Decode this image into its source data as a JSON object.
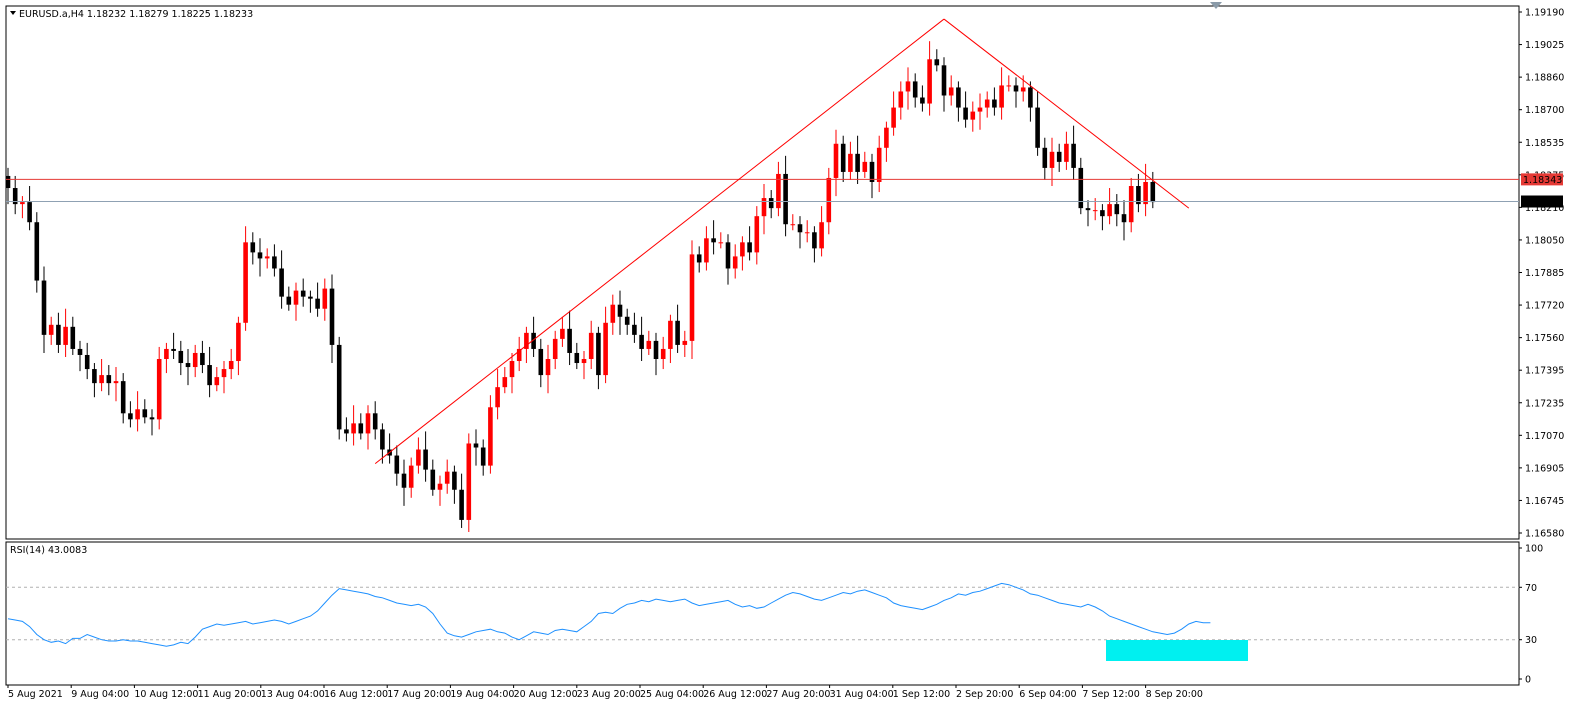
{
  "header": {
    "symbol_line": "EURUSD.a,H4  1.18232 1.18279 1.18225 1.18233",
    "menu_icon": "triangle-down-icon"
  },
  "rsi_panel": {
    "label": "RSI(14) 43.0083"
  },
  "price_tags": {
    "red_line_label": "1.18343",
    "current_price_label": "1.18233"
  },
  "colors": {
    "bull": "#ff0000",
    "bear": "#000000",
    "trendline": "#ff0000",
    "hline": "#e53935",
    "price_line": "#8fa1b3",
    "rsi_line": "#1e90ff",
    "rsi_box": "#00f0f0",
    "grid_dash": "#b0b0b0"
  },
  "chart_data": {
    "type": "candlestick",
    "symbol": "EURUSD.a",
    "timeframe": "H4",
    "ohlc_last": {
      "open": 1.18232,
      "high": 1.18279,
      "low": 1.18225,
      "close": 1.18233
    },
    "y_range": [
      1.1658,
      1.1919
    ],
    "y_ticks": [
      "1.19190",
      "1.19025",
      "1.18860",
      "1.18700",
      "1.18535",
      "1.18375",
      "1.18210",
      "1.18050",
      "1.17885",
      "1.17720",
      "1.17560",
      "1.17395",
      "1.17235",
      "1.17070",
      "1.16905",
      "1.16745",
      "1.16580"
    ],
    "x_labels": [
      "5 Aug 2021",
      "9 Aug 04:00",
      "10 Aug 12:00",
      "11 Aug 20:00",
      "13 Aug 04:00",
      "16 Aug 12:00",
      "17 Aug 20:00",
      "19 Aug 04:00",
      "20 Aug 12:00",
      "23 Aug 20:00",
      "25 Aug 04:00",
      "26 Aug 12:00",
      "27 Aug 20:00",
      "31 Aug 04:00",
      "1 Sep 12:00",
      "2 Sep 20:00",
      "6 Sep 04:00",
      "7 Sep 12:00",
      "8 Sep 20:00"
    ],
    "closes": [
      1.183,
      1.1822,
      1.1823,
      1.1813,
      1.1784,
      1.1757,
      1.1762,
      1.1752,
      1.1761,
      1.175,
      1.1747,
      1.174,
      1.1733,
      1.1737,
      1.1733,
      1.1734,
      1.1718,
      1.1715,
      1.172,
      1.1716,
      1.1715,
      1.1745,
      1.175,
      1.1749,
      1.1743,
      1.1741,
      1.1748,
      1.1742,
      1.1732,
      1.1736,
      1.174,
      1.1744,
      1.1763,
      1.1803,
      1.1798,
      1.1795,
      1.1796,
      1.179,
      1.1776,
      1.1772,
      1.1779,
      1.1776,
      1.1775,
      1.177,
      1.178,
      1.1752,
      1.171,
      1.1708,
      1.1713,
      1.1708,
      1.1718,
      1.171,
      1.17,
      1.1697,
      1.1688,
      1.1681,
      1.1692,
      1.17,
      1.169,
      1.168,
      1.1683,
      1.1689,
      1.168,
      1.1665,
      1.1703,
      1.1701,
      1.1692,
      1.1721,
      1.1731,
      1.1736,
      1.1744,
      1.175,
      1.1758,
      1.175,
      1.1737,
      1.1745,
      1.1755,
      1.176,
      1.1748,
      1.1743,
      1.1745,
      1.1758,
      1.1737,
      1.1763,
      1.1772,
      1.1766,
      1.1762,
      1.1757,
      1.175,
      1.1754,
      1.1745,
      1.175,
      1.1764,
      1.1752,
      1.1754,
      1.1797,
      1.1793,
      1.1805,
      1.1803,
      1.1803,
      1.179,
      1.1796,
      1.1803,
      1.1798,
      1.1816,
      1.1825,
      1.182,
      1.1837,
      1.1812,
      1.1812,
      1.1808,
      1.1808,
      1.18,
      1.1813,
      1.1835,
      1.1852,
      1.1838,
      1.1847,
      1.1838,
      1.1843,
      1.1833,
      1.185,
      1.186,
      1.187,
      1.1878,
      1.1883,
      1.1875,
      1.1872,
      1.1894,
      1.1891,
      1.1876,
      1.188,
      1.187,
      1.1864,
      1.1868,
      1.187,
      1.1874,
      1.187,
      1.1881,
      1.1881,
      1.1878,
      1.188,
      1.187,
      1.185,
      1.184,
      1.1848,
      1.1843,
      1.1852,
      1.184,
      1.182,
      1.1819,
      1.1819,
      1.1816,
      1.1822,
      1.1817,
      1.1813,
      1.1831,
      1.1822,
      1.1833,
      1.1823
    ],
    "horizontal_lines": [
      {
        "label": "1.18343",
        "price": 1.18343
      },
      {
        "label": "1.18233",
        "price": 1.18233
      }
    ],
    "trendlines": [
      {
        "from": {
          "index": 51,
          "price": 1.1693
        },
        "to": {
          "index": 130,
          "price": 1.1914
        }
      },
      {
        "from": {
          "index": 130,
          "price": 1.1914
        },
        "to": {
          "index": 164,
          "price": 1.182
        }
      }
    ],
    "rsi": {
      "period": 14,
      "last": 43.0083,
      "y_ticks": [
        "100",
        "70",
        "30",
        "0"
      ],
      "levels": [
        70,
        30
      ],
      "values": [
        46,
        45,
        44,
        40,
        34,
        30,
        28,
        29,
        27,
        31,
        31,
        34,
        32,
        30,
        29,
        29,
        30,
        29,
        29,
        28,
        27,
        26,
        25,
        26,
        28,
        27,
        32,
        38,
        40,
        42,
        41,
        42,
        43,
        44,
        42,
        43,
        44,
        45,
        44,
        42,
        44,
        46,
        48,
        52,
        58,
        64,
        69,
        68,
        67,
        66,
        65,
        63,
        62,
        60,
        58,
        57,
        56,
        57,
        55,
        50,
        42,
        35,
        33,
        32,
        34,
        36,
        37,
        38,
        36,
        35,
        32,
        30,
        33,
        36,
        35,
        34,
        37,
        38,
        37,
        36,
        40,
        44,
        50,
        51,
        50,
        54,
        57,
        58,
        60,
        59,
        61,
        60,
        59,
        60,
        61,
        58,
        56,
        57,
        58,
        59,
        60,
        57,
        55,
        56,
        54,
        55,
        58,
        61,
        64,
        66,
        65,
        63,
        61,
        60,
        62,
        64,
        66,
        65,
        67,
        68,
        66,
        64,
        62,
        58,
        56,
        55,
        54,
        53,
        55,
        57,
        60,
        62,
        65,
        64,
        66,
        67,
        69,
        71,
        73,
        72,
        70,
        68,
        65,
        64,
        62,
        60,
        58,
        57,
        56,
        55,
        57,
        55,
        52,
        48,
        46,
        44,
        42,
        40,
        38,
        36,
        35,
        34,
        35,
        38,
        42,
        44,
        43,
        43
      ]
    }
  }
}
